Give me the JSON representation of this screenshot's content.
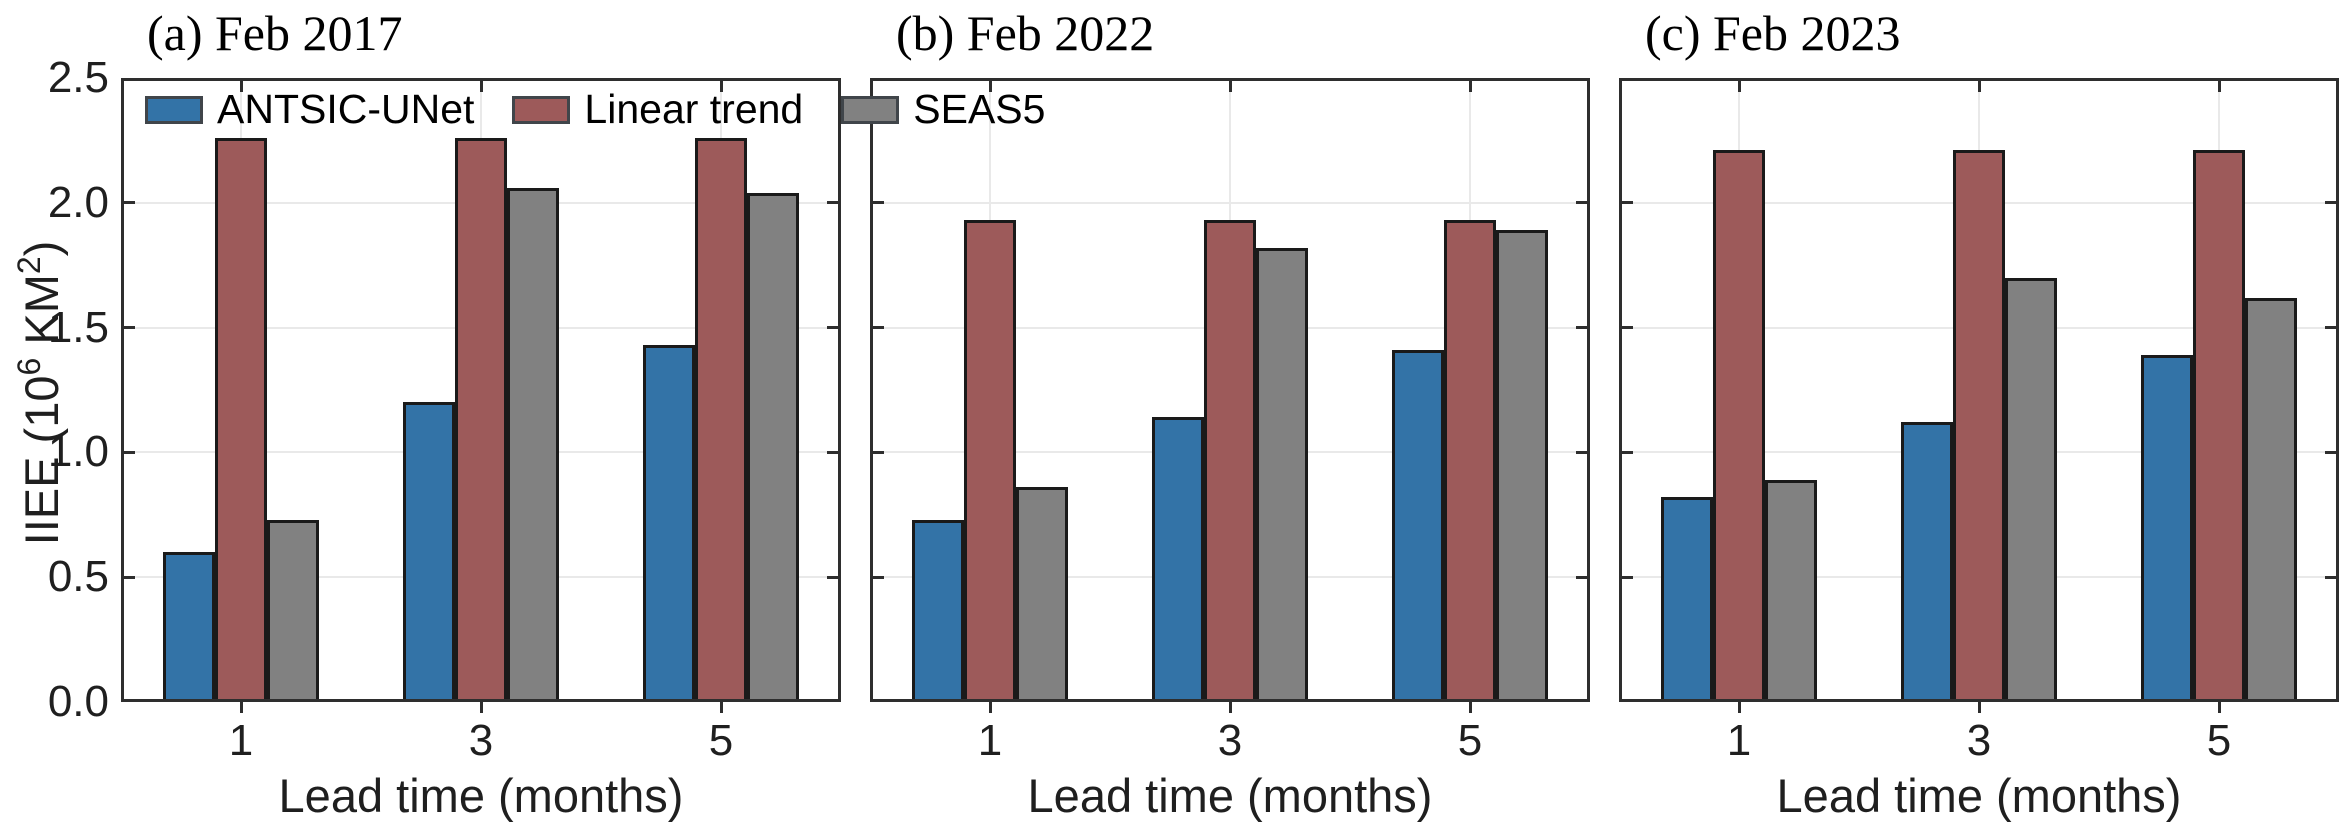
{
  "figure": {
    "background": "#ffffff",
    "axis_color": "#2e2e2e",
    "grid_color": "#e9e9e9",
    "bar_edge_color": "#1a1a1a",
    "ylabel_parts": {
      "text1": "IIEE (10",
      "sup1": "6",
      "text2": " KM",
      "sup2": "2",
      "text3": ")"
    },
    "ytick_labels": [
      "0.0",
      "0.5",
      "1.0",
      "1.5",
      "2.0",
      "2.5"
    ],
    "xtick_labels": [
      "1",
      "3",
      "5"
    ],
    "legend": {
      "items": [
        {
          "label": "ANTSIC-UNet",
          "color": "#3373a7"
        },
        {
          "label": "Linear trend",
          "color": "#9d5a5a"
        },
        {
          "label": "SEAS5",
          "color": "#818181"
        }
      ]
    }
  },
  "chart_data": [
    {
      "type": "bar",
      "title": "(a) Feb 2017",
      "xlabel": "Lead time (months)",
      "ylabel": "IIEE (10^6 KM^2)",
      "categories": [
        1,
        3,
        5
      ],
      "ylim": [
        0,
        2.5
      ],
      "yticks": [
        0.0,
        0.5,
        1.0,
        1.5,
        2.0,
        2.5
      ],
      "grid": true,
      "legend_position": "top-left inside panel",
      "series": [
        {
          "name": "ANTSIC-UNet",
          "color": "#3373a7",
          "values": [
            0.6,
            1.2,
            1.43
          ]
        },
        {
          "name": "Linear trend",
          "color": "#9d5a5a",
          "values": [
            2.26,
            2.26,
            2.26
          ]
        },
        {
          "name": "SEAS5",
          "color": "#818181",
          "values": [
            0.73,
            2.06,
            2.04
          ]
        }
      ]
    },
    {
      "type": "bar",
      "title": "(b) Feb 2022",
      "xlabel": "Lead time (months)",
      "ylabel": "IIEE (10^6 KM^2)",
      "categories": [
        1,
        3,
        5
      ],
      "ylim": [
        0,
        2.5
      ],
      "yticks": [
        0.0,
        0.5,
        1.0,
        1.5,
        2.0,
        2.5
      ],
      "grid": true,
      "legend_position": "none",
      "series": [
        {
          "name": "ANTSIC-UNet",
          "color": "#3373a7",
          "values": [
            0.73,
            1.14,
            1.41
          ]
        },
        {
          "name": "Linear trend",
          "color": "#9d5a5a",
          "values": [
            1.93,
            1.93,
            1.93
          ]
        },
        {
          "name": "SEAS5",
          "color": "#818181",
          "values": [
            0.86,
            1.82,
            1.89
          ]
        }
      ]
    },
    {
      "type": "bar",
      "title": "(c) Feb 2023",
      "xlabel": "Lead time (months)",
      "ylabel": "IIEE (10^6 KM^2)",
      "categories": [
        1,
        3,
        5
      ],
      "ylim": [
        0,
        2.5
      ],
      "yticks": [
        0.0,
        0.5,
        1.0,
        1.5,
        2.0,
        2.5
      ],
      "grid": true,
      "legend_position": "none",
      "series": [
        {
          "name": "ANTSIC-UNet",
          "color": "#3373a7",
          "values": [
            0.82,
            1.12,
            1.39
          ]
        },
        {
          "name": "Linear trend",
          "color": "#9d5a5a",
          "values": [
            2.21,
            2.21,
            2.21
          ]
        },
        {
          "name": "SEAS5",
          "color": "#818181",
          "values": [
            0.89,
            1.7,
            1.62
          ]
        }
      ]
    }
  ]
}
